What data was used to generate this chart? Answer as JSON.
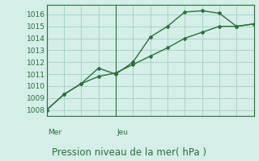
{
  "background_color": "#d4eee8",
  "grid_color": "#a8d4c8",
  "line_color": "#2d6e3e",
  "marker_color": "#2d6e3e",
  "title": "Pression niveau de la mer( hPa )",
  "xlabel_day_labels": [
    "Mer",
    "Jeu"
  ],
  "xlabel_day_positions": [
    0.0,
    8.0
  ],
  "ylim": [
    1007.5,
    1016.8
  ],
  "yticks": [
    1008,
    1009,
    1010,
    1011,
    1012,
    1013,
    1014,
    1015,
    1016
  ],
  "series1_x": [
    0.0,
    2.0,
    4.0,
    6.0,
    8.0,
    10.0,
    12.0,
    14.0,
    16.0,
    18.0,
    20.0,
    22.0,
    24.0
  ],
  "series1_y": [
    1008.0,
    1009.3,
    1010.2,
    1011.5,
    1011.0,
    1012.0,
    1014.1,
    1015.0,
    1016.2,
    1016.3,
    1016.1,
    1015.0,
    1015.2
  ],
  "series2_x": [
    0.0,
    2.0,
    4.0,
    6.0,
    8.0,
    10.0,
    12.0,
    14.0,
    16.0,
    18.0,
    20.0,
    22.0,
    24.0
  ],
  "series2_y": [
    1008.0,
    1009.3,
    1010.2,
    1010.8,
    1011.1,
    1011.8,
    1012.5,
    1013.2,
    1014.0,
    1014.5,
    1015.0,
    1015.0,
    1015.2
  ],
  "vline_positions": [
    0.0,
    8.0
  ],
  "vline_color": "#2d6e3e",
  "xlim": [
    0,
    24
  ],
  "xticks": [
    0,
    2,
    4,
    6,
    8,
    10,
    12,
    14,
    16,
    18,
    20,
    22,
    24
  ],
  "tick_fontsize": 6.5,
  "label_fontsize": 8.5
}
